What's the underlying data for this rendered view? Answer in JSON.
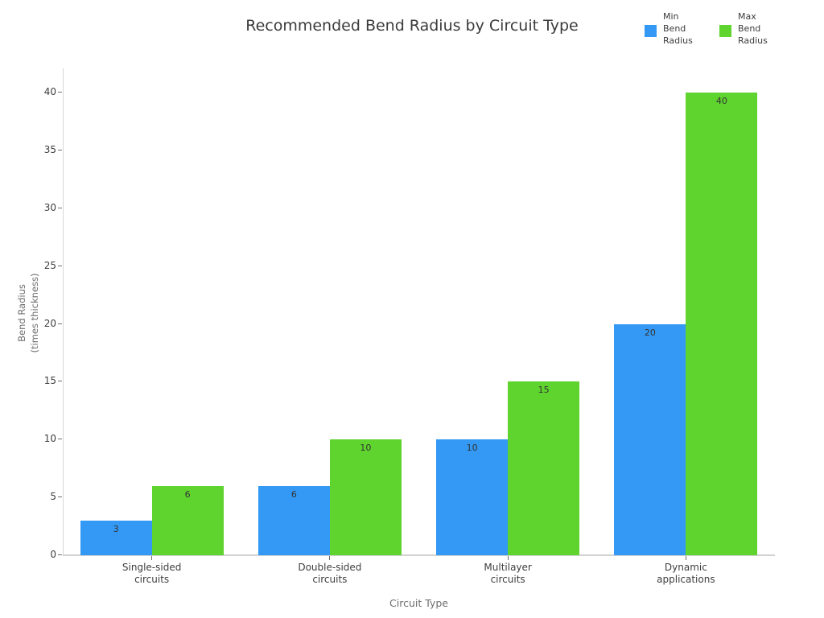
{
  "chart_data": {
    "type": "bar",
    "title": "Recommended Bend Radius by Circuit Type",
    "xlabel": "Circuit Type",
    "ylabel": "Bend Radius\n(times thickness)",
    "categories": [
      "Single-sided\ncircuits",
      "Double-sided\ncircuits",
      "Multilayer\ncircuits",
      "Dynamic\napplications"
    ],
    "series": [
      {
        "name": "Min Bend Radius",
        "color": "#3399f4",
        "values": [
          3,
          6,
          10,
          20
        ]
      },
      {
        "name": "Max Bend Radius",
        "color": "#5fd32e",
        "values": [
          6,
          10,
          15,
          40
        ]
      }
    ],
    "yticks": [
      0,
      5,
      10,
      15,
      20,
      25,
      30,
      35,
      40
    ],
    "ylim": [
      0,
      42
    ],
    "grid": false,
    "bar_value_labels": true,
    "legend_position": "top-right",
    "colors": {
      "min_bar": "#3399f4",
      "max_bar": "#5fd32e",
      "axis_line": "#d4d4d4",
      "text_dark": "#3b3b3b",
      "text_gray": "#6e6e6e"
    }
  }
}
